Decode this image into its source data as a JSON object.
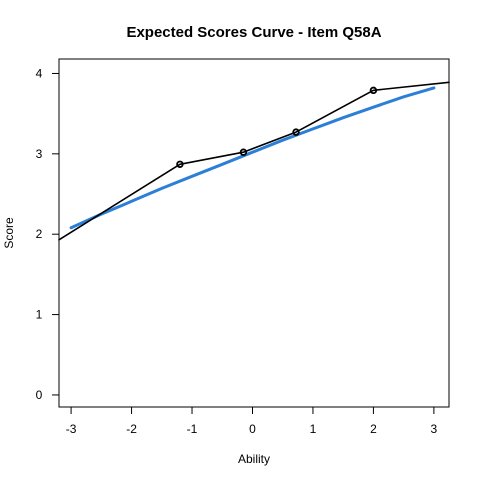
{
  "chart_data": {
    "type": "line",
    "title": "Expected Scores Curve - Item  Q58A",
    "xlabel": "Ability",
    "ylabel": "Score",
    "xlim": [
      -3.2,
      3.25
    ],
    "ylim": [
      -0.15,
      4.18
    ],
    "x_ticks": [
      "-3",
      "-2",
      "-1",
      "0",
      "1",
      "2",
      "3"
    ],
    "y_ticks": [
      "0",
      "1",
      "2",
      "3",
      "4"
    ],
    "grid": false,
    "series": [
      {
        "kind": "model_curve",
        "color": "#2b7fd6",
        "x": [
          -3.0,
          -2.5,
          -2.0,
          -1.5,
          -1.0,
          -0.5,
          0.0,
          0.5,
          1.0,
          1.5,
          2.0,
          2.5,
          3.0
        ],
        "y": [
          2.08,
          2.25,
          2.41,
          2.57,
          2.72,
          2.87,
          3.02,
          3.17,
          3.31,
          3.45,
          3.58,
          3.71,
          3.82
        ]
      },
      {
        "kind": "observed_line",
        "color": "#000000",
        "x": [
          -3.2,
          -1.2,
          -0.15,
          0.72,
          2.0,
          3.25
        ],
        "y": [
          1.93,
          2.87,
          3.02,
          3.27,
          3.79,
          3.89
        ]
      },
      {
        "kind": "observed_points",
        "color": "#000000",
        "x": [
          -1.2,
          -0.15,
          0.72,
          2.0
        ],
        "y": [
          2.87,
          3.02,
          3.27,
          3.79
        ]
      }
    ]
  }
}
